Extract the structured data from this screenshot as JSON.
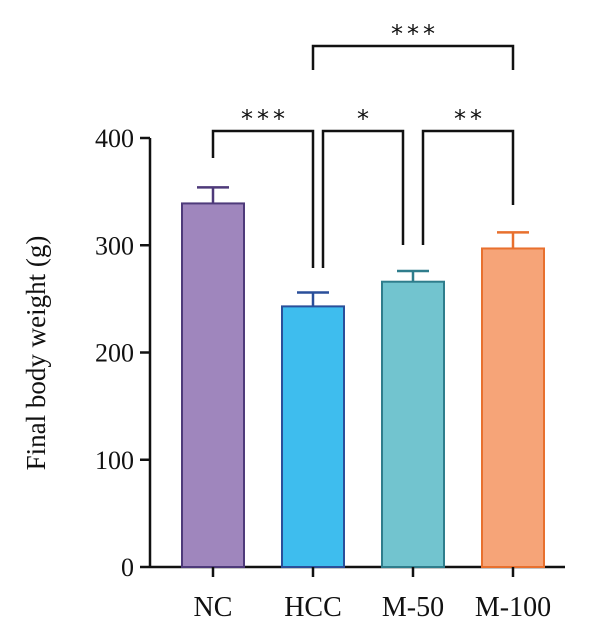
{
  "chart_data": {
    "type": "bar",
    "title": "",
    "xlabel": "",
    "ylabel": "Final body weight (g)",
    "ylim": [
      0,
      400
    ],
    "yticks": [
      0,
      100,
      200,
      300,
      400
    ],
    "grid": false,
    "categories": [
      "NC",
      "HCC",
      "M-50",
      "M-100"
    ],
    "values": [
      339,
      243,
      266,
      297
    ],
    "errors": [
      15,
      13,
      10,
      15
    ],
    "bar_colors": [
      "#9f86bd",
      "#3ebdee",
      "#72c4cf",
      "#f6a478"
    ],
    "edge_colors": [
      "#4e3a7a",
      "#2a4f9a",
      "#2f7d8c",
      "#e8702e"
    ],
    "significance": [
      {
        "from": "NC",
        "to": "HCC",
        "label": "***"
      },
      {
        "from": "HCC",
        "to": "M-50",
        "label": "*"
      },
      {
        "from": "M-50",
        "to": "M-100",
        "label": "**"
      },
      {
        "from": "HCC",
        "to": "M-100",
        "label": "***"
      }
    ]
  }
}
